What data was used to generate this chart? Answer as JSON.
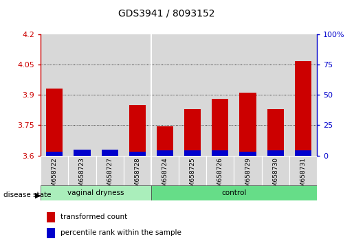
{
  "title": "GDS3941 / 8093152",
  "samples": [
    "GSM658722",
    "GSM658723",
    "GSM658727",
    "GSM658728",
    "GSM658724",
    "GSM658725",
    "GSM658726",
    "GSM658729",
    "GSM658730",
    "GSM658731"
  ],
  "group_labels": [
    "vaginal dryness",
    "control"
  ],
  "group_split": 4,
  "red_values": [
    3.93,
    3.62,
    3.62,
    3.85,
    3.745,
    3.83,
    3.88,
    3.91,
    3.83,
    4.065
  ],
  "blue_values": [
    0.02,
    0.03,
    0.03,
    0.02,
    0.025,
    0.025,
    0.025,
    0.02,
    0.025,
    0.025
  ],
  "baseline": 3.6,
  "ylim": [
    3.6,
    4.2
  ],
  "yticks_left": [
    3.6,
    3.75,
    3.9,
    4.05,
    4.2
  ],
  "yticks_right": [
    0,
    25,
    50,
    75,
    100
  ],
  "red_color": "#cc0000",
  "blue_color": "#0000cc",
  "bar_width": 0.6,
  "group1_color": "#aaeebb",
  "group2_color": "#66dd88",
  "bg_color": "#d8d8d8",
  "legend_red": "transformed count",
  "legend_blue": "percentile rank within the sample",
  "group_label": "disease state"
}
